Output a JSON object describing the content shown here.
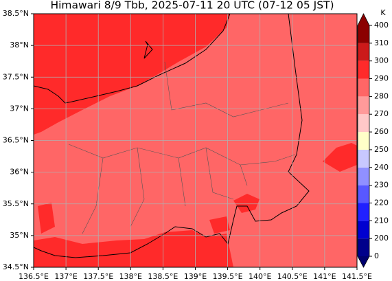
{
  "map": {
    "title": "Himawari 8/9 Tbb, 2025-07-11 20 UTC (07-12 05 JST)",
    "xlim": [
      136.5,
      141.5
    ],
    "ylim": [
      34.5,
      38.5
    ],
    "xticks": [
      {
        "value": 136.5,
        "label": "136.5°E"
      },
      {
        "value": 137,
        "label": "137°E"
      },
      {
        "value": 137.5,
        "label": "137.5°E"
      },
      {
        "value": 138,
        "label": "138°E"
      },
      {
        "value": 138.5,
        "label": "138.5°E"
      },
      {
        "value": 139,
        "label": "139°E"
      },
      {
        "value": 139.5,
        "label": "139.5°E"
      },
      {
        "value": 140,
        "label": "140°E"
      },
      {
        "value": 140.5,
        "label": "140.5°E"
      },
      {
        "value": 141,
        "label": "141°E"
      },
      {
        "value": 141.5,
        "label": "141.5°E"
      }
    ],
    "yticks": [
      {
        "value": 34.5,
        "label": "34.5°N"
      },
      {
        "value": 35,
        "label": "35°N"
      },
      {
        "value": 35.5,
        "label": "35.5°N"
      },
      {
        "value": 36,
        "label": "36°N"
      },
      {
        "value": 36.5,
        "label": "36.5°N"
      },
      {
        "value": 37,
        "label": "37°N"
      },
      {
        "value": 37.5,
        "label": "37.5°N"
      },
      {
        "value": 38,
        "label": "38°N"
      },
      {
        "value": 38.5,
        "label": "38.5°N"
      }
    ],
    "colorbar": {
      "unit": "K",
      "ticks": [
        0,
        200,
        210,
        220,
        230,
        240,
        250,
        260,
        270,
        280,
        290,
        300,
        310,
        400
      ],
      "colors": [
        "#00008b",
        "#0000d0",
        "#2020ff",
        "#5858ff",
        "#9090ff",
        "#c8c8ff",
        "#ffffc8",
        "#ffc8c8",
        "#ff9a9a",
        "#ff6666",
        "#ff2a2a",
        "#cc1a1a",
        "#8b0000"
      ],
      "under_color": "#00006e",
      "over_color": "#8b0000"
    }
  }
}
